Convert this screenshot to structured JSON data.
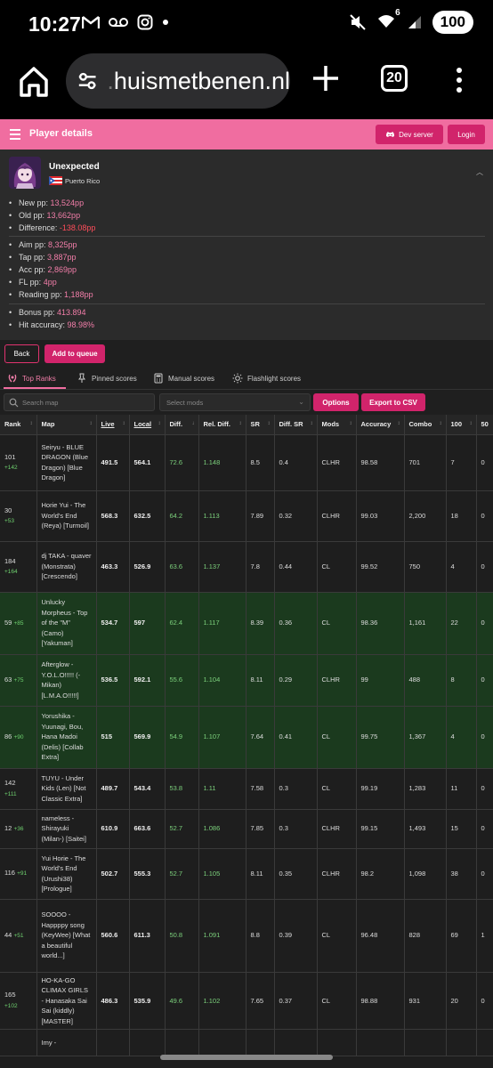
{
  "status": {
    "time": "10:27",
    "battery": "100",
    "signal": "6"
  },
  "browser": {
    "url_faded": ".",
    "url": "huismetbenen.nl",
    "tab_count": "20"
  },
  "header": {
    "title": "Player details",
    "dev_server": "Dev server",
    "login": "Login"
  },
  "player": {
    "name": "Unexpected",
    "country": "Puerto Rico",
    "stats_a": [
      {
        "label": "New pp: ",
        "value": "13,524pp",
        "color": "pink"
      },
      {
        "label": "Old pp: ",
        "value": "13,662pp",
        "color": "pink"
      },
      {
        "label": "Difference: ",
        "value": "-138.08pp",
        "color": "red"
      }
    ],
    "stats_b": [
      {
        "label": "Aim pp: ",
        "value": "8,325pp",
        "color": "pink"
      },
      {
        "label": "Tap pp: ",
        "value": "3,887pp",
        "color": "pink"
      },
      {
        "label": "Acc pp: ",
        "value": "2,869pp",
        "color": "pink"
      },
      {
        "label": "FL pp: ",
        "value": "4pp",
        "color": "pink"
      },
      {
        "label": "Reading pp: ",
        "value": "1,188pp",
        "color": "pink"
      }
    ],
    "stats_c": [
      {
        "label": "Bonus pp: ",
        "value": "413.894",
        "color": "pink"
      },
      {
        "label": "Hit accuracy: ",
        "value": "98.98%",
        "color": "pink"
      }
    ]
  },
  "actions": {
    "back": "Back",
    "queue": "Add to queue"
  },
  "tabs": [
    {
      "label": "Top Ranks",
      "icon": "laurel-icon",
      "active": true
    },
    {
      "label": "Pinned scores",
      "icon": "pin-icon",
      "active": false
    },
    {
      "label": "Manual scores",
      "icon": "calculator-icon",
      "active": false
    },
    {
      "label": "Flashlight scores",
      "icon": "sun-icon",
      "active": false
    }
  ],
  "filters": {
    "search_placeholder": "Search map",
    "mods_placeholder": "Select mods",
    "options": "Options",
    "export": "Export to CSV"
  },
  "table": {
    "columns": [
      {
        "label": "Rank",
        "sort": "↕",
        "underline": false
      },
      {
        "label": "Map",
        "sort": "↕",
        "underline": false
      },
      {
        "label": "Live",
        "sort": "↕",
        "underline": true
      },
      {
        "label": "Local",
        "sort": "↕",
        "underline": true
      },
      {
        "label": "Diff.",
        "sort": "↓",
        "underline": false
      },
      {
        "label": "Rel. Diff.",
        "sort": "↕",
        "underline": false
      },
      {
        "label": "SR",
        "sort": "↕",
        "underline": false
      },
      {
        "label": "Diff. SR",
        "sort": "↕",
        "underline": false
      },
      {
        "label": "Mods",
        "sort": "↕",
        "underline": false
      },
      {
        "label": "Accuracy",
        "sort": "↕",
        "underline": false
      },
      {
        "label": "Combo",
        "sort": "↕",
        "underline": false
      },
      {
        "label": "100",
        "sort": "↕",
        "underline": false
      },
      {
        "label": "50",
        "sort": "",
        "underline": false
      }
    ],
    "rows": [
      {
        "rank": "101",
        "delta": "+142",
        "map": "Seiryu - BLUE DRAGON (Blue Dragon) [Blue Dragon]",
        "live": "491.5",
        "local": "564.1",
        "diff": "72.6",
        "rel": "1.148",
        "sr": "8.5",
        "dsr": "0.4",
        "mods": "CLHR",
        "acc": "98.58",
        "combo": "701",
        "c100": "7",
        "c50": "0",
        "green": false
      },
      {
        "rank": "30",
        "delta": "+53",
        "map": "Horie Yui - The World's End (Reya) [Turmoil]",
        "live": "568.3",
        "local": "632.5",
        "diff": "64.2",
        "rel": "1.113",
        "sr": "7.89",
        "dsr": "0.32",
        "mods": "CLHR",
        "acc": "99.03",
        "combo": "2,200",
        "c100": "18",
        "c50": "0",
        "green": false
      },
      {
        "rank": "184",
        "delta": "+164",
        "map": "dj TAKA - quaver (Monstrata) [Crescendo]",
        "live": "463.3",
        "local": "526.9",
        "diff": "63.6",
        "rel": "1.137",
        "sr": "7.8",
        "dsr": "0.44",
        "mods": "CL",
        "acc": "99.52",
        "combo": "750",
        "c100": "4",
        "c50": "0",
        "green": false
      },
      {
        "rank": "59",
        "delta": "+85",
        "map": "Unlucky Morpheus - Top of the \"M\" (Camo) [Yakuman]",
        "live": "534.7",
        "local": "597",
        "diff": "62.4",
        "rel": "1.117",
        "sr": "8.39",
        "dsr": "0.36",
        "mods": "CL",
        "acc": "98.36",
        "combo": "1,161",
        "c100": "22",
        "c50": "0",
        "green": true
      },
      {
        "rank": "63",
        "delta": "+75",
        "map": "Afterglow - Y.O.L.O!!!!! (-Mikan) [L.M.A.O!!!!!]",
        "live": "536.5",
        "local": "592.1",
        "diff": "55.6",
        "rel": "1.104",
        "sr": "8.11",
        "dsr": "0.29",
        "mods": "CLHR",
        "acc": "99",
        "combo": "488",
        "c100": "8",
        "c50": "0",
        "green": true
      },
      {
        "rank": "86",
        "delta": "+90",
        "map": "Yorushika - Yuunagi, Bou, Hana Madoi (Delis) [Collab Extra]",
        "live": "515",
        "local": "569.9",
        "diff": "54.9",
        "rel": "1.107",
        "sr": "7.64",
        "dsr": "0.41",
        "mods": "CL",
        "acc": "99.75",
        "combo": "1,367",
        "c100": "4",
        "c50": "0",
        "green": true
      },
      {
        "rank": "142",
        "delta": "+111",
        "map": "TUYU - Under Kids (Len) [Not Classic Extra]",
        "live": "489.7",
        "local": "543.4",
        "diff": "53.8",
        "rel": "1.11",
        "sr": "7.58",
        "dsr": "0.3",
        "mods": "CL",
        "acc": "99.19",
        "combo": "1,283",
        "c100": "11",
        "c50": "0",
        "green": false
      },
      {
        "rank": "12",
        "delta": "+36",
        "map": "nameless - Shirayuki (Milan-) [Saitei]",
        "live": "610.9",
        "local": "663.6",
        "diff": "52.7",
        "rel": "1.086",
        "sr": "7.85",
        "dsr": "0.3",
        "mods": "CLHR",
        "acc": "99.15",
        "combo": "1,493",
        "c100": "15",
        "c50": "0",
        "green": false
      },
      {
        "rank": "116",
        "delta": "+91",
        "map": "Yui Horie - The World's End (Urushi38) [Prologue]",
        "live": "502.7",
        "local": "555.3",
        "diff": "52.7",
        "rel": "1.105",
        "sr": "8.11",
        "dsr": "0.35",
        "mods": "CLHR",
        "acc": "98.2",
        "combo": "1,098",
        "c100": "38",
        "c50": "0",
        "green": false
      },
      {
        "rank": "44",
        "delta": "+51",
        "map": "SOOOO - Happppy song (KeyWee) [What a beautiful world...]",
        "live": "560.6",
        "local": "611.3",
        "diff": "50.8",
        "rel": "1.091",
        "sr": "8.8",
        "dsr": "0.39",
        "mods": "CL",
        "acc": "96.48",
        "combo": "828",
        "c100": "69",
        "c50": "1",
        "green": false
      },
      {
        "rank": "165",
        "delta": "+102",
        "map": "HO-KA-GO CLIMAX GIRLS - Hanasaka Sai Sai (kiddly) [MASTER]",
        "live": "486.3",
        "local": "535.9",
        "diff": "49.6",
        "rel": "1.102",
        "sr": "7.65",
        "dsr": "0.37",
        "mods": "CL",
        "acc": "98.88",
        "combo": "931",
        "c100": "20",
        "c50": "0",
        "green": false
      },
      {
        "rank": "",
        "delta": "",
        "map": "Imy -",
        "live": "",
        "local": "",
        "diff": "",
        "rel": "",
        "sr": "",
        "dsr": "",
        "mods": "",
        "acc": "",
        "combo": "",
        "c100": "",
        "c50": "",
        "green": false
      }
    ]
  }
}
